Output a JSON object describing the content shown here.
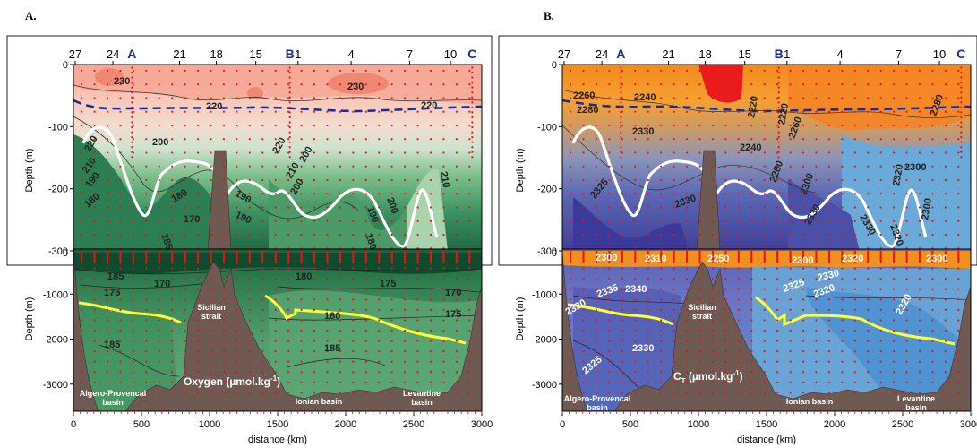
{
  "chart_data": [
    {
      "type": "contour",
      "panel_label": "A.",
      "variable_label": "Oxygen (µmol.kg",
      "variable_label_sup": "-1",
      "variable_label_end": ")",
      "xlabel": "distance (km)",
      "ylabel": "Depth (m)",
      "xlim": [
        0,
        3000
      ],
      "ylim_top": [
        -300,
        0
      ],
      "ylim_bottom": [
        -3600,
        0
      ],
      "x_ticks": [
        0,
        500,
        1000,
        1500,
        2000,
        2500,
        3000
      ],
      "y_ticks_top": [
        0,
        -100,
        -200,
        -300
      ],
      "y_ticks_bottom": [
        -1000,
        -2000,
        -3000
      ],
      "station_ticks": [
        "27",
        "24",
        "21",
        "18",
        "15",
        "1",
        "4",
        "7",
        "10"
      ],
      "station_letters": [
        "A",
        "B",
        "C"
      ],
      "region_labels": [
        "Sicilian strait",
        "Algero-Provencal basin",
        "Ionian basin",
        "Levantine basin"
      ],
      "contour_labels_top": [
        "230",
        "220",
        "230",
        "220",
        "220",
        "200",
        "210",
        "190",
        "200",
        "220",
        "210",
        "200",
        "190",
        "180",
        "190",
        "180",
        "170",
        "185",
        "180",
        "200",
        "190",
        "210"
      ],
      "contour_labels_bottom": [
        "185",
        "170",
        "175",
        "180",
        "175",
        "180",
        "170",
        "175",
        "185",
        "185"
      ],
      "colors": {
        "high": "#f29a88",
        "low": "#1e6e44",
        "mixed_line": "#1a2a9a",
        "thermocline_line": "#ffffff",
        "deep_line": "#ffff33",
        "bathymetry": "#6e5a52",
        "stations": "#ee1111"
      }
    },
    {
      "type": "contour",
      "panel_label": "B.",
      "variable_label": "C",
      "variable_label_sub": "T",
      "variable_label_end": " (µmol.kg",
      "variable_label_sup": "-1",
      "variable_label_close": ")",
      "xlabel": "distance (km)",
      "ylabel": "Depth (m)",
      "xlim": [
        0,
        3000
      ],
      "ylim_top": [
        -300,
        0
      ],
      "ylim_bottom": [
        -3600,
        0
      ],
      "x_ticks": [
        0,
        500,
        1000,
        1500,
        2000,
        2500,
        3000
      ],
      "y_ticks_top": [
        0,
        -100,
        -200,
        -300
      ],
      "y_ticks_bottom": [
        -1000,
        -2000,
        -3000
      ],
      "station_ticks": [
        "27",
        "24",
        "21",
        "18",
        "15",
        "1",
        "4",
        "7",
        "10"
      ],
      "station_letters": [
        "A",
        "B",
        "C"
      ],
      "region_labels": [
        "Sicilian strait",
        "Algero-Provencal basin",
        "Ionian basin",
        "Levantine basin"
      ],
      "contour_labels_top": [
        "2260",
        "2240",
        "2280",
        "2220",
        "2220",
        "2260",
        "2280",
        "2300",
        "2240",
        "2280",
        "2300",
        "2320",
        "2330",
        "2330",
        "2330",
        "2300",
        "2320",
        "2330",
        "2325"
      ],
      "contour_labels_bottom": [
        "2300",
        "2310",
        "2250",
        "2300",
        "2320",
        "2300",
        "2340",
        "2335",
        "2320",
        "2330",
        "2325",
        "2320",
        "2320",
        "2330",
        "2325"
      ],
      "colors": {
        "high": "#f7a21c",
        "peak": "#e81c1c",
        "low": "#3b3a9a",
        "deep": "#6aaad8",
        "mixed_line": "#1a2a9a",
        "thermocline_line": "#ffffff",
        "deep_line": "#ffff33",
        "bathymetry": "#6e5a52",
        "stations": "#ee1111"
      }
    }
  ]
}
